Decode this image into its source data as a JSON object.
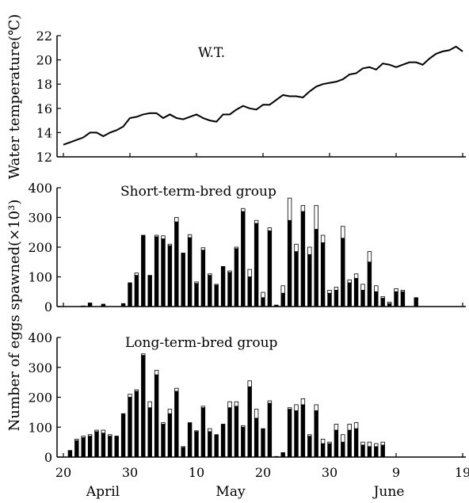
{
  "y_label_top": "Water temperature(℃)",
  "y_label_bottom": "Number of eggs spawned(×10³)",
  "month_labels": [
    "April",
    "May",
    "June"
  ],
  "colors": {
    "line": "#000000",
    "bar_fill": "#000000",
    "bar_open": "#ffffff"
  },
  "chart_data": [
    {
      "id": "water-temperature",
      "type": "line",
      "title": "W.T.",
      "ylabel": "Water temperature(℃)",
      "ylim": [
        12,
        22
      ],
      "yticks": [
        12,
        14,
        16,
        18,
        20,
        22
      ],
      "xlim": [
        0,
        60
      ],
      "x_ticks": [
        0,
        10,
        20,
        30,
        40,
        50,
        60
      ],
      "x_tick_labels": [
        "20",
        "30",
        "10",
        "20",
        "30",
        "9",
        "19"
      ],
      "x_note": "x = day index, day 0 = April 20",
      "series": [
        {
          "values": [
            13.0,
            13.2,
            13.4,
            13.6,
            14.0,
            14.0,
            13.7,
            14.0,
            14.2,
            14.5,
            15.2,
            15.3,
            15.5,
            15.6,
            15.6,
            15.2,
            15.5,
            15.2,
            15.1,
            15.3,
            15.5,
            15.2,
            15.0,
            14.9,
            15.5,
            15.5,
            15.9,
            16.2,
            16.0,
            15.9,
            16.3,
            16.3,
            16.7,
            17.1,
            17.0,
            17.0,
            16.9,
            17.4,
            17.8,
            18.0,
            18.1,
            18.2,
            18.4,
            18.8,
            18.9,
            19.3,
            19.4,
            19.2,
            19.7,
            19.6,
            19.4,
            19.6,
            19.8,
            19.8,
            19.6,
            20.1,
            20.5,
            20.7,
            20.8,
            21.1,
            20.7
          ]
        }
      ]
    },
    {
      "id": "short-term-bred",
      "type": "bar",
      "title": "Short-term-bred group",
      "ylim": [
        0,
        400
      ],
      "yticks": [
        0,
        100,
        200,
        300,
        400
      ],
      "xlim": [
        0,
        60
      ],
      "x": [
        3,
        4,
        6,
        9,
        10,
        11,
        12,
        13,
        14,
        15,
        16,
        17,
        18,
        19,
        20,
        21,
        22,
        23,
        24,
        25,
        26,
        27,
        28,
        29,
        30,
        31,
        32,
        33,
        34,
        35,
        36,
        37,
        38,
        39,
        40,
        41,
        42,
        43,
        44,
        45,
        46,
        47,
        48,
        49,
        50,
        51,
        53
      ],
      "series": [
        {
          "name": "filled",
          "values": [
            2,
            12,
            8,
            10,
            80,
            105,
            240,
            105,
            235,
            228,
            205,
            285,
            180,
            232,
            78,
            190,
            105,
            72,
            135,
            115,
            195,
            320,
            100,
            280,
            30,
            255,
            5,
            45,
            290,
            185,
            320,
            175,
            260,
            215,
            45,
            55,
            230,
            80,
            95,
            55,
            150,
            50,
            28,
            10,
            50,
            50,
            28
          ]
        },
        {
          "name": "open",
          "values": [
            0,
            0,
            0,
            0,
            0,
            8,
            0,
            0,
            5,
            10,
            5,
            15,
            0,
            10,
            5,
            8,
            5,
            3,
            0,
            5,
            5,
            10,
            25,
            10,
            18,
            10,
            0,
            25,
            75,
            25,
            20,
            25,
            80,
            25,
            10,
            10,
            40,
            10,
            15,
            20,
            35,
            20,
            5,
            5,
            10,
            5,
            2
          ]
        }
      ]
    },
    {
      "id": "long-term-bred",
      "type": "bar",
      "title": "Long-term-bred group",
      "ylim": [
        0,
        400
      ],
      "yticks": [
        0,
        100,
        200,
        300,
        400
      ],
      "xlim": [
        0,
        60
      ],
      "x": [
        1,
        2,
        3,
        4,
        5,
        6,
        7,
        8,
        9,
        10,
        11,
        12,
        13,
        14,
        15,
        16,
        17,
        18,
        19,
        20,
        21,
        22,
        23,
        24,
        25,
        26,
        27,
        28,
        29,
        30,
        31,
        32,
        33,
        34,
        35,
        36,
        37,
        38,
        39,
        40,
        41,
        42,
        43,
        44,
        45,
        46,
        47,
        48
      ],
      "series": [
        {
          "name": "filled",
          "values": [
            22,
            55,
            65,
            70,
            85,
            80,
            70,
            68,
            145,
            200,
            220,
            340,
            165,
            275,
            110,
            145,
            220,
            32,
            115,
            85,
            165,
            85,
            75,
            110,
            165,
            170,
            100,
            235,
            130,
            95,
            180,
            2,
            15,
            160,
            155,
            175,
            70,
            155,
            45,
            45,
            90,
            50,
            90,
            95,
            40,
            35,
            35,
            40
          ]
        },
        {
          "name": "open",
          "values": [
            0,
            5,
            5,
            5,
            5,
            10,
            5,
            2,
            0,
            10,
            5,
            5,
            20,
            15,
            5,
            15,
            10,
            3,
            0,
            3,
            5,
            10,
            0,
            0,
            20,
            15,
            5,
            20,
            30,
            0,
            8,
            0,
            0,
            5,
            20,
            20,
            5,
            20,
            15,
            5,
            20,
            25,
            20,
            20,
            10,
            15,
            10,
            10
          ]
        }
      ]
    }
  ]
}
